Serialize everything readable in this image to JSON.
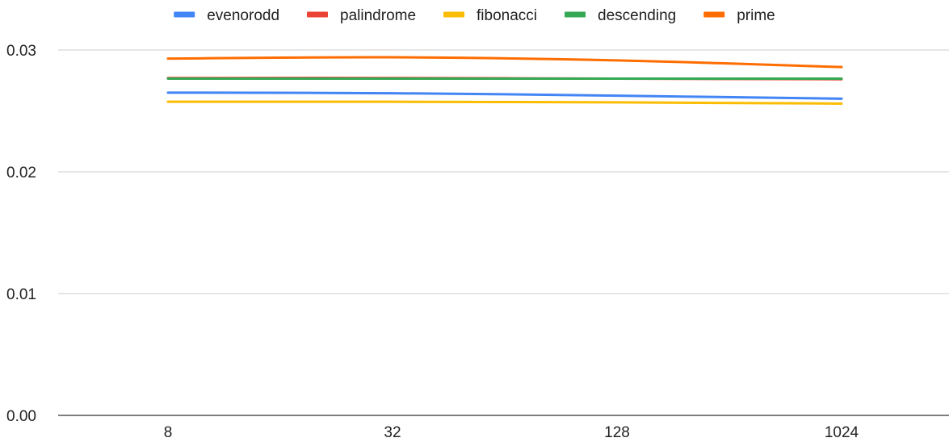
{
  "chart_data": {
    "type": "line",
    "title": "",
    "xlabel": "",
    "ylabel": "",
    "categories": [
      "8",
      "32",
      "128",
      "1024"
    ],
    "ylim": [
      0,
      0.03
    ],
    "yticks": [
      "0.00",
      "0.01",
      "0.02",
      "0.03"
    ],
    "ytick_values": [
      0,
      0.01,
      0.02,
      0.03
    ],
    "grid": true,
    "legend_position": "top",
    "series": [
      {
        "name": "evenorodd",
        "color": "#4285F4",
        "values": [
          0.0265,
          0.02645,
          0.02625,
          0.026
        ]
      },
      {
        "name": "palindrome",
        "color": "#EA4335",
        "values": [
          0.0277,
          0.0277,
          0.02765,
          0.0276
        ]
      },
      {
        "name": "fibonacci",
        "color": "#FBBC04",
        "values": [
          0.02575,
          0.02575,
          0.0257,
          0.0256
        ]
      },
      {
        "name": "descending",
        "color": "#34A853",
        "values": [
          0.02765,
          0.02765,
          0.02765,
          0.02765
        ]
      },
      {
        "name": "prime",
        "color": "#FF6D01",
        "values": [
          0.0293,
          0.0294,
          0.02915,
          0.0286
        ]
      }
    ]
  }
}
